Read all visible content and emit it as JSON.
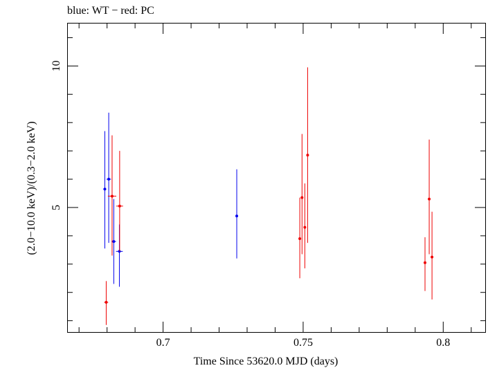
{
  "chart_data": {
    "type": "scatter",
    "title": "blue: WT − red: PC",
    "xlabel": "Time Since 53620.0 MJD (days)",
    "ylabel": "(2.0−10.0 keV)/(0.3−2.0 keV)",
    "xlim": [
      0.666,
      0.815
    ],
    "ylim": [
      0.6,
      11.5
    ],
    "x_ticks": [
      0.7,
      0.75,
      0.8
    ],
    "x_tick_labels": [
      "0.7",
      "0.75",
      "0.8"
    ],
    "y_ticks": [
      5,
      10
    ],
    "y_tick_labels": [
      "5",
      "10"
    ],
    "grid": false,
    "series": [
      {
        "name": "WT",
        "color": "#0000ee",
        "points": [
          {
            "x": 0.6792,
            "y": 5.65,
            "xerr": 0.0005,
            "ylo": 3.55,
            "yhi": 7.7
          },
          {
            "x": 0.6806,
            "y": 6.0,
            "xerr": 0.0008,
            "ylo": 3.75,
            "yhi": 8.35
          },
          {
            "x": 0.6824,
            "y": 3.8,
            "xerr": 0.0008,
            "ylo": 2.3,
            "yhi": 5.3
          },
          {
            "x": 0.6844,
            "y": 3.45,
            "xerr": 0.0012,
            "ylo": 2.2,
            "yhi": 4.4
          },
          {
            "x": 0.7263,
            "y": 4.7,
            "xerr": 0.0002,
            "ylo": 3.2,
            "yhi": 6.35
          }
        ]
      },
      {
        "name": "PC",
        "color": "#ee0000",
        "points": [
          {
            "x": 0.6797,
            "y": 1.65,
            "xerr": 0.0007,
            "ylo": 0.85,
            "yhi": 2.4
          },
          {
            "x": 0.6818,
            "y": 5.4,
            "xerr": 0.0015,
            "ylo": 3.3,
            "yhi": 7.55
          },
          {
            "x": 0.6845,
            "y": 5.05,
            "xerr": 0.0012,
            "ylo": 3.45,
            "yhi": 7.0
          },
          {
            "x": 0.7488,
            "y": 3.9,
            "xerr": 0.0002,
            "ylo": 2.5,
            "yhi": 5.35
          },
          {
            "x": 0.7496,
            "y": 5.35,
            "xerr": 0.0002,
            "ylo": 3.35,
            "yhi": 7.6
          },
          {
            "x": 0.7506,
            "y": 4.3,
            "xerr": 0.0002,
            "ylo": 2.85,
            "yhi": 5.85
          },
          {
            "x": 0.7516,
            "y": 6.85,
            "xerr": 0.0002,
            "ylo": 3.75,
            "yhi": 9.95
          },
          {
            "x": 0.7935,
            "y": 3.05,
            "xerr": 0.0004,
            "ylo": 2.05,
            "yhi": 3.95
          },
          {
            "x": 0.795,
            "y": 5.3,
            "xerr": 0.0002,
            "ylo": 3.35,
            "yhi": 7.4
          },
          {
            "x": 0.796,
            "y": 3.25,
            "xerr": 0.0002,
            "ylo": 1.75,
            "yhi": 4.85
          }
        ]
      }
    ]
  }
}
